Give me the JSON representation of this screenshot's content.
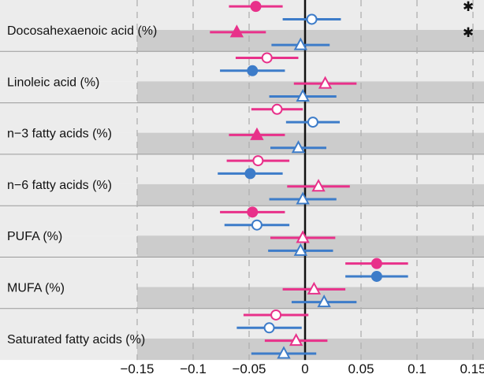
{
  "chart_data": {
    "type": "forest",
    "xlim": [
      -0.15,
      0.15
    ],
    "x_ticks": [
      -0.15,
      -0.1,
      -0.05,
      0,
      0.05,
      0.1,
      0.15
    ],
    "x_tick_labels": [
      "−0.15",
      "−0.1",
      "−0.05",
      "0",
      "0.05",
      "0.1",
      "0.15"
    ],
    "grid": "vertical-dashed",
    "significance_marker": "✱",
    "colors": {
      "pink": "#e8318a",
      "blue": "#3d7cc9",
      "band_light": "#ececec",
      "band_dark": "#cccccc",
      "zero_line": "#111111"
    },
    "series": [
      {
        "key": "pink_circle",
        "color": "pink",
        "marker": "circle"
      },
      {
        "key": "blue_circle",
        "color": "blue",
        "marker": "circle"
      },
      {
        "key": "pink_triangle",
        "color": "pink",
        "marker": "triangle"
      },
      {
        "key": "blue_triangle",
        "color": "blue",
        "marker": "triangle"
      }
    ],
    "groups": [
      {
        "label": "Docosahexaenoic acid (%)",
        "rows": [
          {
            "series": "pink_circle",
            "est": -0.044,
            "lo": -0.068,
            "hi": -0.02,
            "filled": true,
            "sig": true
          },
          {
            "series": "blue_circle",
            "est": 0.006,
            "lo": -0.02,
            "hi": 0.032,
            "filled": false,
            "sig": false
          },
          {
            "series": "pink_triangle",
            "est": -0.061,
            "lo": -0.085,
            "hi": -0.035,
            "filled": true,
            "sig": true
          },
          {
            "series": "blue_triangle",
            "est": -0.004,
            "lo": -0.03,
            "hi": 0.022,
            "filled": false,
            "sig": false
          }
        ]
      },
      {
        "label": "Linoleic acid (%)",
        "rows": [
          {
            "series": "pink_circle",
            "est": -0.034,
            "lo": -0.062,
            "hi": -0.006,
            "filled": false,
            "sig": false
          },
          {
            "series": "blue_circle",
            "est": -0.047,
            "lo": -0.076,
            "hi": -0.018,
            "filled": true,
            "sig": false
          },
          {
            "series": "pink_triangle",
            "est": 0.018,
            "lo": -0.01,
            "hi": 0.046,
            "filled": false,
            "sig": false
          },
          {
            "series": "blue_triangle",
            "est": -0.002,
            "lo": -0.032,
            "hi": 0.028,
            "filled": false,
            "sig": false
          }
        ]
      },
      {
        "label": "n−3 fatty acids (%)",
        "rows": [
          {
            "series": "pink_circle",
            "est": -0.025,
            "lo": -0.048,
            "hi": -0.002,
            "filled": false,
            "sig": false
          },
          {
            "series": "blue_circle",
            "est": 0.007,
            "lo": -0.017,
            "hi": 0.031,
            "filled": false,
            "sig": false
          },
          {
            "series": "pink_triangle",
            "est": -0.043,
            "lo": -0.068,
            "hi": -0.018,
            "filled": true,
            "sig": false
          },
          {
            "series": "blue_triangle",
            "est": -0.006,
            "lo": -0.031,
            "hi": 0.019,
            "filled": false,
            "sig": false
          }
        ]
      },
      {
        "label": "n−6 fatty acids (%)",
        "rows": [
          {
            "series": "pink_circle",
            "est": -0.042,
            "lo": -0.07,
            "hi": -0.014,
            "filled": false,
            "sig": false
          },
          {
            "series": "blue_circle",
            "est": -0.049,
            "lo": -0.078,
            "hi": -0.02,
            "filled": true,
            "sig": false
          },
          {
            "series": "pink_triangle",
            "est": 0.012,
            "lo": -0.016,
            "hi": 0.04,
            "filled": false,
            "sig": false
          },
          {
            "series": "blue_triangle",
            "est": -0.002,
            "lo": -0.032,
            "hi": 0.028,
            "filled": false,
            "sig": false
          }
        ]
      },
      {
        "label": "PUFA (%)",
        "rows": [
          {
            "series": "pink_circle",
            "est": -0.047,
            "lo": -0.076,
            "hi": -0.018,
            "filled": true,
            "sig": false
          },
          {
            "series": "blue_circle",
            "est": -0.043,
            "lo": -0.072,
            "hi": -0.014,
            "filled": false,
            "sig": false
          },
          {
            "series": "pink_triangle",
            "est": -0.002,
            "lo": -0.031,
            "hi": 0.027,
            "filled": false,
            "sig": false
          },
          {
            "series": "blue_triangle",
            "est": -0.004,
            "lo": -0.033,
            "hi": 0.025,
            "filled": false,
            "sig": false
          }
        ]
      },
      {
        "label": "MUFA (%)",
        "rows": [
          {
            "series": "pink_circle",
            "est": 0.064,
            "lo": 0.036,
            "hi": 0.092,
            "filled": true,
            "sig": false
          },
          {
            "series": "blue_circle",
            "est": 0.064,
            "lo": 0.036,
            "hi": 0.092,
            "filled": true,
            "sig": false
          },
          {
            "series": "pink_triangle",
            "est": 0.008,
            "lo": -0.02,
            "hi": 0.036,
            "filled": false,
            "sig": false
          },
          {
            "series": "blue_triangle",
            "est": 0.017,
            "lo": -0.012,
            "hi": 0.046,
            "filled": false,
            "sig": false
          }
        ]
      },
      {
        "label": "Saturated fatty acids (%)",
        "rows": [
          {
            "series": "pink_circle",
            "est": -0.026,
            "lo": -0.055,
            "hi": 0.003,
            "filled": false,
            "sig": false
          },
          {
            "series": "blue_circle",
            "est": -0.032,
            "lo": -0.061,
            "hi": -0.003,
            "filled": false,
            "sig": false
          },
          {
            "series": "pink_triangle",
            "est": -0.008,
            "lo": -0.036,
            "hi": 0.02,
            "filled": false,
            "sig": false
          },
          {
            "series": "blue_triangle",
            "est": -0.019,
            "lo": -0.048,
            "hi": 0.01,
            "filled": false,
            "sig": false
          }
        ]
      }
    ]
  }
}
